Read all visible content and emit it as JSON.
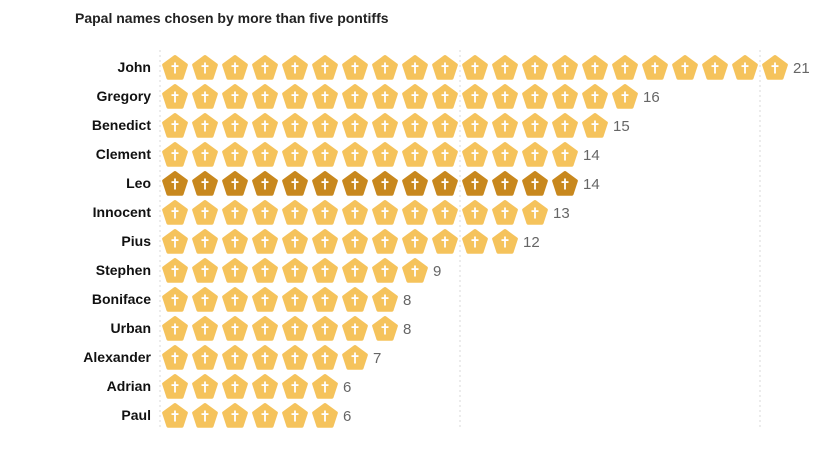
{
  "chart_data": {
    "type": "bar",
    "title": "Papal names chosen by more than five pontiffs",
    "categories": [
      "John",
      "Gregory",
      "Benedict",
      "Clement",
      "Leo",
      "Innocent",
      "Pius",
      "Stephen",
      "Boniface",
      "Urban",
      "Alexander",
      "Adrian",
      "Paul"
    ],
    "values": [
      21,
      16,
      15,
      14,
      14,
      13,
      12,
      9,
      8,
      8,
      7,
      6,
      6
    ],
    "highlight": "Leo",
    "icon": "papal-mitre-icon",
    "grid": true,
    "colors": {
      "default": "#f5c35c",
      "highlight": "#c8881e",
      "cross": "#ffffff"
    }
  }
}
